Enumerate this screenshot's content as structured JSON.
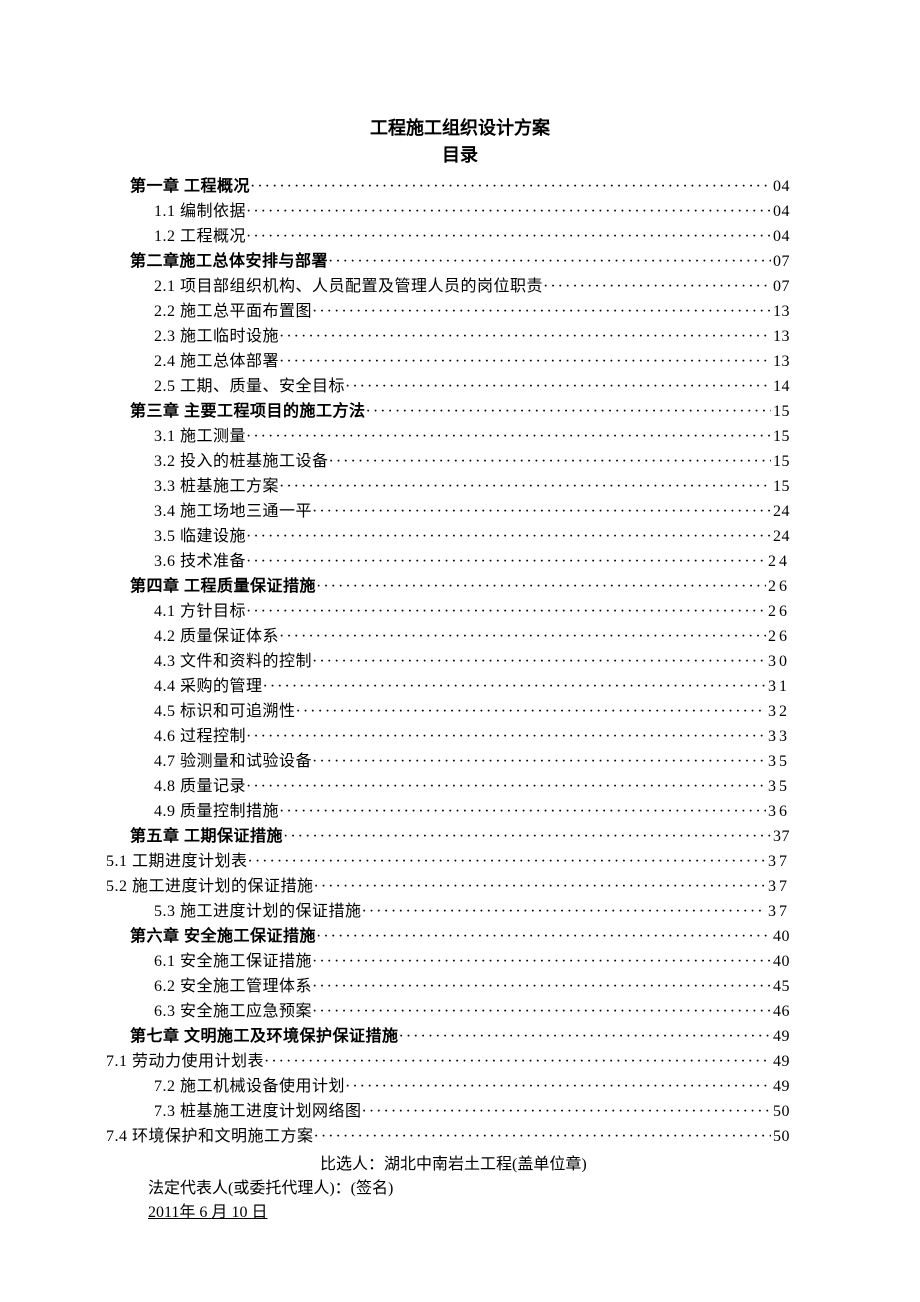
{
  "title": "工程施工组织设计方案",
  "subtitle": "目录",
  "toc": [
    {
      "type": "chapter",
      "label": "第一章 工程概况",
      "page": "04"
    },
    {
      "type": "sub",
      "label": "1.1 编制依据",
      "page": "04"
    },
    {
      "type": "sub",
      "label": "1.2 工程概况",
      "page": "04"
    },
    {
      "type": "chapter",
      "label": "第二章施工总体安排与部署",
      "page": "07"
    },
    {
      "type": "sub",
      "label": "2.1 项目部组织机构、人员配置及管理人员的岗位职责",
      "page": "07"
    },
    {
      "type": "sub",
      "label": "2.2 施工总平面布置图",
      "page": "13"
    },
    {
      "type": "sub",
      "label": "2.3 施工临时设施",
      "page": "13"
    },
    {
      "type": "sub",
      "label": "2.4 施工总体部署",
      "page": "13"
    },
    {
      "type": "sub",
      "label": "2.5 工期、质量、安全目标",
      "page": "14"
    },
    {
      "type": "chapter",
      "label": "第三章 主要工程项目的施工方法",
      "page": "15"
    },
    {
      "type": "sub",
      "label": "3.1 施工测量",
      "page": "15"
    },
    {
      "type": "sub",
      "label": "3.2 投入的桩基施工设备",
      "page": "15"
    },
    {
      "type": "sub",
      "label": "3.3 桩基施工方案",
      "page": "15"
    },
    {
      "type": "sub",
      "label": "3.4 施工场地三通一平",
      "page": "24"
    },
    {
      "type": "sub",
      "label": "3.5 临建设施",
      "page": "24"
    },
    {
      "type": "sub",
      "label": "3.6 技术准备",
      "page": " 24",
      "spaced": true
    },
    {
      "type": "chapter",
      "label": "第四章 工程质量保证措施",
      "page": " 26",
      "spaced": true
    },
    {
      "type": "sub",
      "label": "4.1 方针目标",
      "page": " 26",
      "spaced": true
    },
    {
      "type": "sub",
      "label": "4.2 质量保证体系",
      "page": " 26",
      "spaced": true
    },
    {
      "type": "sub",
      "label": "4.3 文件和资料的控制",
      "page": " 30",
      "spaced": true
    },
    {
      "type": "sub",
      "label": "4.4 采购的管理",
      "page": " 31",
      "spaced": true
    },
    {
      "type": "sub",
      "label": "4.5 标识和可追溯性",
      "page": " 32",
      "spaced": true
    },
    {
      "type": "sub",
      "label": "4.6 过程控制",
      "page": " 33",
      "spaced": true
    },
    {
      "type": "sub",
      "label": "4.7 验测量和试验设备",
      "page": " 35",
      "spaced": true
    },
    {
      "type": "sub",
      "label": "4.8 质量记录",
      "page": " 35",
      "spaced": true
    },
    {
      "type": "sub",
      "label": "4.9 质量控制措施",
      "page": " 36",
      "spaced": true
    },
    {
      "type": "chapter",
      "label": "第五章 工期保证措施",
      "page": "37"
    },
    {
      "type": "outdent",
      "label": "5.1 工期进度计划表",
      "page": " 37",
      "spaced": true
    },
    {
      "type": "outdent",
      "label": "5.2 施工进度计划的保证措施",
      "page": " 37",
      "spaced": true
    },
    {
      "type": "sub",
      "label": "5.3 施工进度计划的保证措施",
      "page": " 37",
      "spaced": true
    },
    {
      "type": "chapter",
      "label": "第六章 安全施工保证措施",
      "page": "40"
    },
    {
      "type": "sub",
      "label": "6.1 安全施工保证措施",
      "page": "40"
    },
    {
      "type": "sub",
      "label": "6.2 安全施工管理体系",
      "page": "45"
    },
    {
      "type": "sub",
      "label": "6.3 安全施工应急预案",
      "page": "46"
    },
    {
      "type": "chapter",
      "label": "第七章 文明施工及环境保护保证措施",
      "page": "49"
    },
    {
      "type": "outdent",
      "label": "7.1 劳动力使用计划表",
      "page": "49"
    },
    {
      "type": "sub",
      "label": "7.2 施工机械设备使用计划",
      "page": "49"
    },
    {
      "type": "sub",
      "label": "7.3 桩基施工进度计划网络图",
      "page": "50"
    },
    {
      "type": "outdent",
      "label": "7.4 环境保护和文明施工方案",
      "page": "50"
    }
  ],
  "footer": {
    "line1": "比选人：湖北中南岩土工程(盖单位章)",
    "line2": "法定代表人(或委托代理人)：(签名)",
    "date_year": "2011",
    "date_year_suffix": "年",
    "date_month": " 6 ",
    "date_month_suffix": "月",
    "date_day": " 10 ",
    "date_day_suffix": "日"
  }
}
